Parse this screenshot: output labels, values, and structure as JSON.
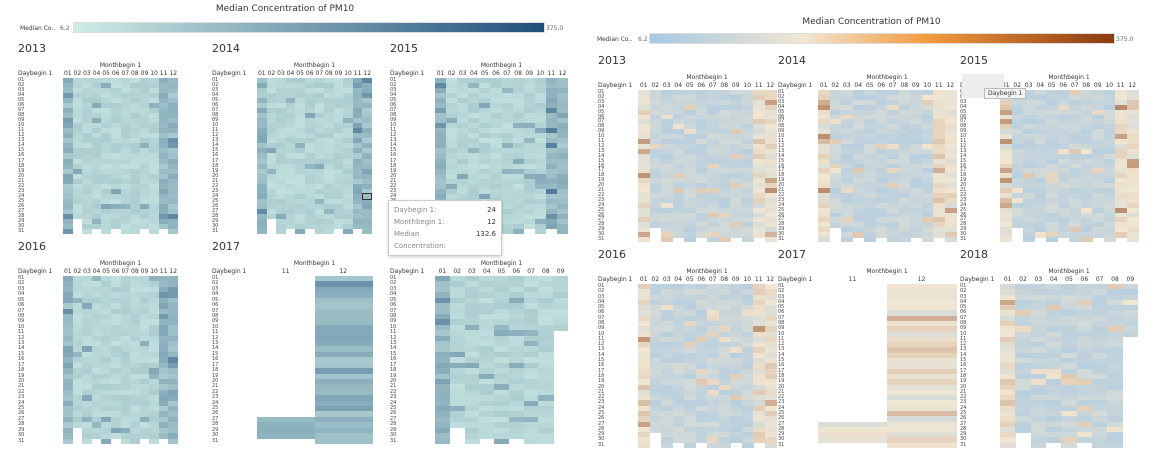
{
  "colors": {
    "teal_low": "#cfece6",
    "teal_high": "#1f4f7a",
    "orange_low": "#a6c8e2",
    "orange_mid": "#f1e6d2",
    "orange_high": "#8a3a12"
  },
  "dashboards": [
    {
      "id": "left",
      "legend": {
        "title": "Median Concentration of PM10",
        "label": "Median Co..",
        "min": "6.2",
        "max": "375.0"
      },
      "palette": "teal",
      "tooltip": {
        "daybegin_label": "Daybegin 1:",
        "daybegin_value": "24",
        "monthbegin_label": "Monthbegin 1:",
        "monthbegin_value": "12",
        "median_label": "Median Concentration:",
        "median_value": "132.6"
      }
    },
    {
      "id": "right",
      "legend": {
        "title": "Median Concentration of PM10",
        "label": "Median Co..",
        "min": "6.2",
        "max": "375.0"
      },
      "palette": "orange",
      "hover_label": "Daybegin 1"
    }
  ],
  "chart_data": [
    {
      "type": "heatmap",
      "year": "2013",
      "row_header": "Daybegin 1",
      "col_header": "Monthbegin 1",
      "months": [
        "01",
        "02",
        "03",
        "04",
        "05",
        "06",
        "07",
        "08",
        "09",
        "10",
        "11",
        "12"
      ],
      "days": [
        "01",
        "02",
        "03",
        "04",
        "05",
        "06",
        "07",
        "08",
        "09",
        "10",
        "11",
        "12",
        "13",
        "14",
        "15",
        "16",
        "17",
        "18",
        "19",
        "20",
        "21",
        "22",
        "23",
        "24",
        "25",
        "26",
        "27",
        "28",
        "29",
        "30",
        "31"
      ],
      "color_measure": "Median Concentration of PM10",
      "color_range": [
        6.2,
        375.0
      ]
    },
    {
      "type": "heatmap",
      "year": "2014",
      "row_header": "Daybegin 1",
      "col_header": "Monthbegin 1",
      "months": [
        "01",
        "02",
        "03",
        "04",
        "05",
        "06",
        "07",
        "08",
        "09",
        "10",
        "11",
        "12"
      ],
      "days": [
        "01",
        "02",
        "03",
        "04",
        "05",
        "06",
        "07",
        "08",
        "09",
        "10",
        "11",
        "12",
        "13",
        "14",
        "15",
        "16",
        "17",
        "18",
        "19",
        "20",
        "21",
        "22",
        "23",
        "24",
        "25",
        "26",
        "27",
        "28",
        "29",
        "30",
        "31"
      ],
      "highlight": {
        "day": "24",
        "month": "12",
        "value": 132.6
      }
    },
    {
      "type": "heatmap",
      "year": "2015",
      "row_header": "Daybegin 1",
      "col_header": "Monthbegin 1",
      "months": [
        "01",
        "02",
        "03",
        "04",
        "05",
        "06",
        "07",
        "08",
        "09",
        "10",
        "11",
        "12"
      ],
      "days": [
        "01",
        "02",
        "03",
        "04",
        "05",
        "06",
        "07",
        "08",
        "09",
        "10",
        "11",
        "12",
        "13",
        "14",
        "15",
        "16",
        "17",
        "18",
        "19",
        "20",
        "21",
        "22",
        "23",
        "24",
        "25",
        "26",
        "27",
        "28",
        "29",
        "30",
        "31"
      ]
    },
    {
      "type": "heatmap",
      "year": "2016",
      "row_header": "Daybegin 1",
      "col_header": "Monthbegin 1",
      "months": [
        "01",
        "02",
        "03",
        "04",
        "05",
        "06",
        "07",
        "08",
        "09",
        "10",
        "11",
        "12"
      ],
      "days": [
        "01",
        "02",
        "03",
        "04",
        "05",
        "06",
        "07",
        "08",
        "09",
        "10",
        "11",
        "12",
        "13",
        "14",
        "15",
        "16",
        "17",
        "18",
        "19",
        "20",
        "21",
        "22",
        "23",
        "24",
        "25",
        "26",
        "27",
        "28",
        "29",
        "30",
        "31"
      ]
    },
    {
      "type": "heatmap",
      "year": "2017",
      "row_header": "Daybegin 1",
      "col_header": "Monthbegin 1",
      "months": [
        "11",
        "12"
      ],
      "days": [
        "01",
        "02",
        "03",
        "04",
        "05",
        "06",
        "07",
        "08",
        "09",
        "10",
        "11",
        "12",
        "13",
        "14",
        "15",
        "16",
        "17",
        "18",
        "19",
        "20",
        "21",
        "22",
        "23",
        "24",
        "25",
        "26",
        "27",
        "28",
        "29",
        "30",
        "31"
      ]
    },
    {
      "type": "heatmap",
      "year": "2018",
      "row_header": "Daybegin 1",
      "col_header": "Monthbegin 1",
      "months": [
        "01",
        "02",
        "03",
        "04",
        "05",
        "06",
        "07",
        "08",
        "09"
      ],
      "days": [
        "01",
        "02",
        "03",
        "04",
        "05",
        "06",
        "07",
        "08",
        "09",
        "10",
        "11",
        "12",
        "13",
        "14",
        "15",
        "16",
        "17",
        "18",
        "19",
        "20",
        "21",
        "22",
        "23",
        "24",
        "25",
        "26",
        "27",
        "28",
        "29",
        "30",
        "31"
      ]
    }
  ]
}
